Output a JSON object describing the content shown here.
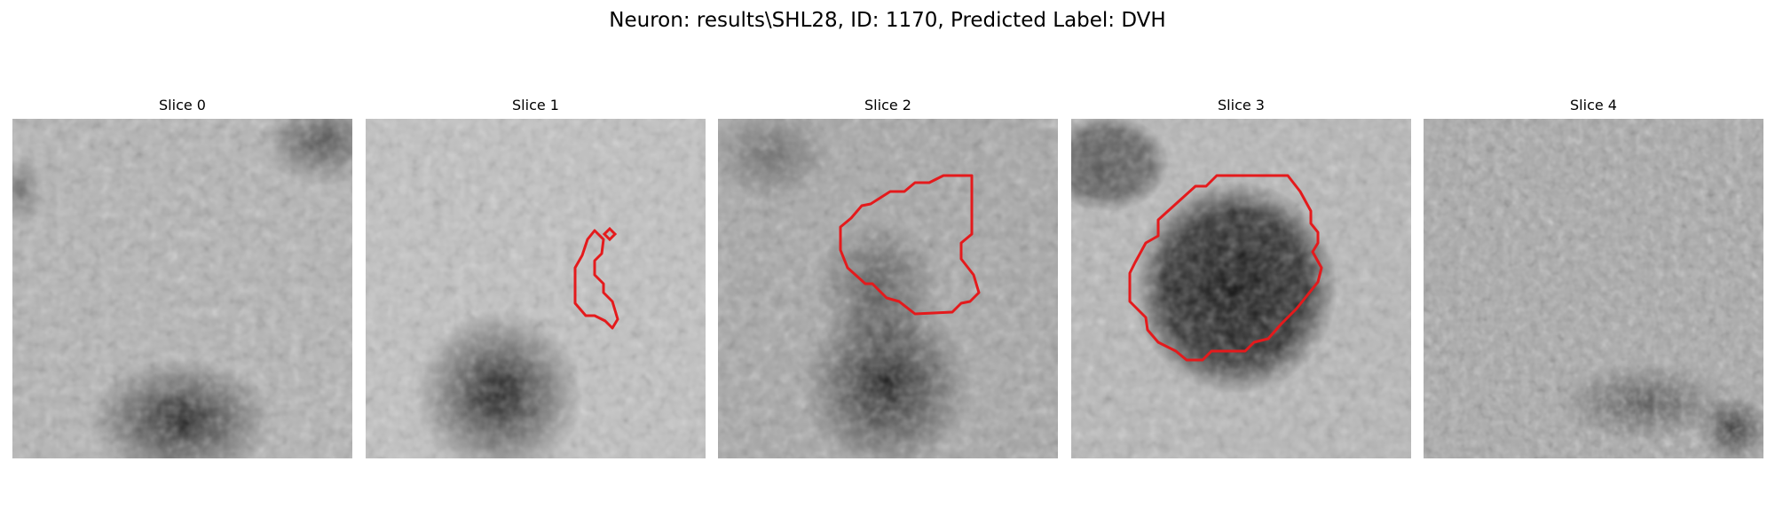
{
  "figure": {
    "title": "Neuron: results\\SHL28, ID: 1170, Predicted Label: DVH",
    "contour_color": "#e41a1c"
  },
  "slices": [
    {
      "label": "Slice 0",
      "has_contour": false
    },
    {
      "label": "Slice 1",
      "has_contour": true
    },
    {
      "label": "Slice 2",
      "has_contour": true
    },
    {
      "label": "Slice 3",
      "has_contour": true
    },
    {
      "label": "Slice 4",
      "has_contour": false
    }
  ]
}
